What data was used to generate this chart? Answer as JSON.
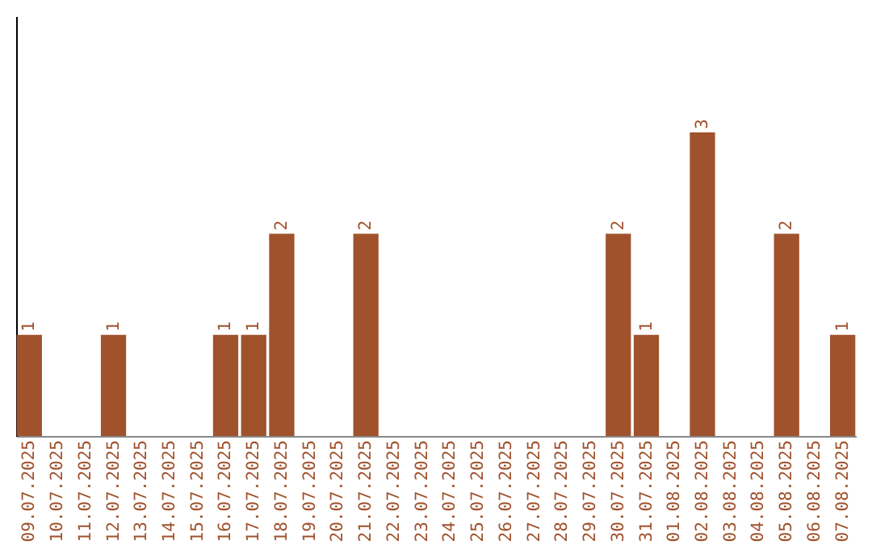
{
  "chart_data": {
    "type": "bar",
    "categories": [
      "09.07.2025",
      "10.07.2025",
      "11.07.2025",
      "12.07.2025",
      "13.07.2025",
      "14.07.2025",
      "15.07.2025",
      "16.07.2025",
      "17.07.2025",
      "18.07.2025",
      "19.07.2025",
      "20.07.2025",
      "21.07.2025",
      "22.07.2025",
      "23.07.2025",
      "24.07.2025",
      "25.07.2025",
      "26.07.2025",
      "27.07.2025",
      "28.07.2025",
      "29.07.2025",
      "30.07.2025",
      "31.07.2025",
      "01.08.2025",
      "02.08.2025",
      "03.08.2025",
      "04.08.2025",
      "05.08.2025",
      "06.08.2025",
      "07.08.2025"
    ],
    "values": [
      1,
      0,
      0,
      1,
      0,
      0,
      0,
      1,
      1,
      2,
      0,
      0,
      2,
      0,
      0,
      0,
      0,
      0,
      0,
      0,
      0,
      2,
      1,
      0,
      3,
      0,
      0,
      2,
      0,
      1
    ],
    "value_labels": [
      "1",
      null,
      null,
      "1",
      null,
      null,
      null,
      "1",
      "1",
      "2",
      null,
      null,
      "2",
      null,
      null,
      null,
      null,
      null,
      null,
      null,
      null,
      "2",
      "1",
      null,
      "3",
      null,
      null,
      "2",
      null,
      "1"
    ],
    "color": "#a0522d",
    "ylim": [
      0,
      4.15
    ],
    "tick_labels": "x",
    "grid": false
  }
}
